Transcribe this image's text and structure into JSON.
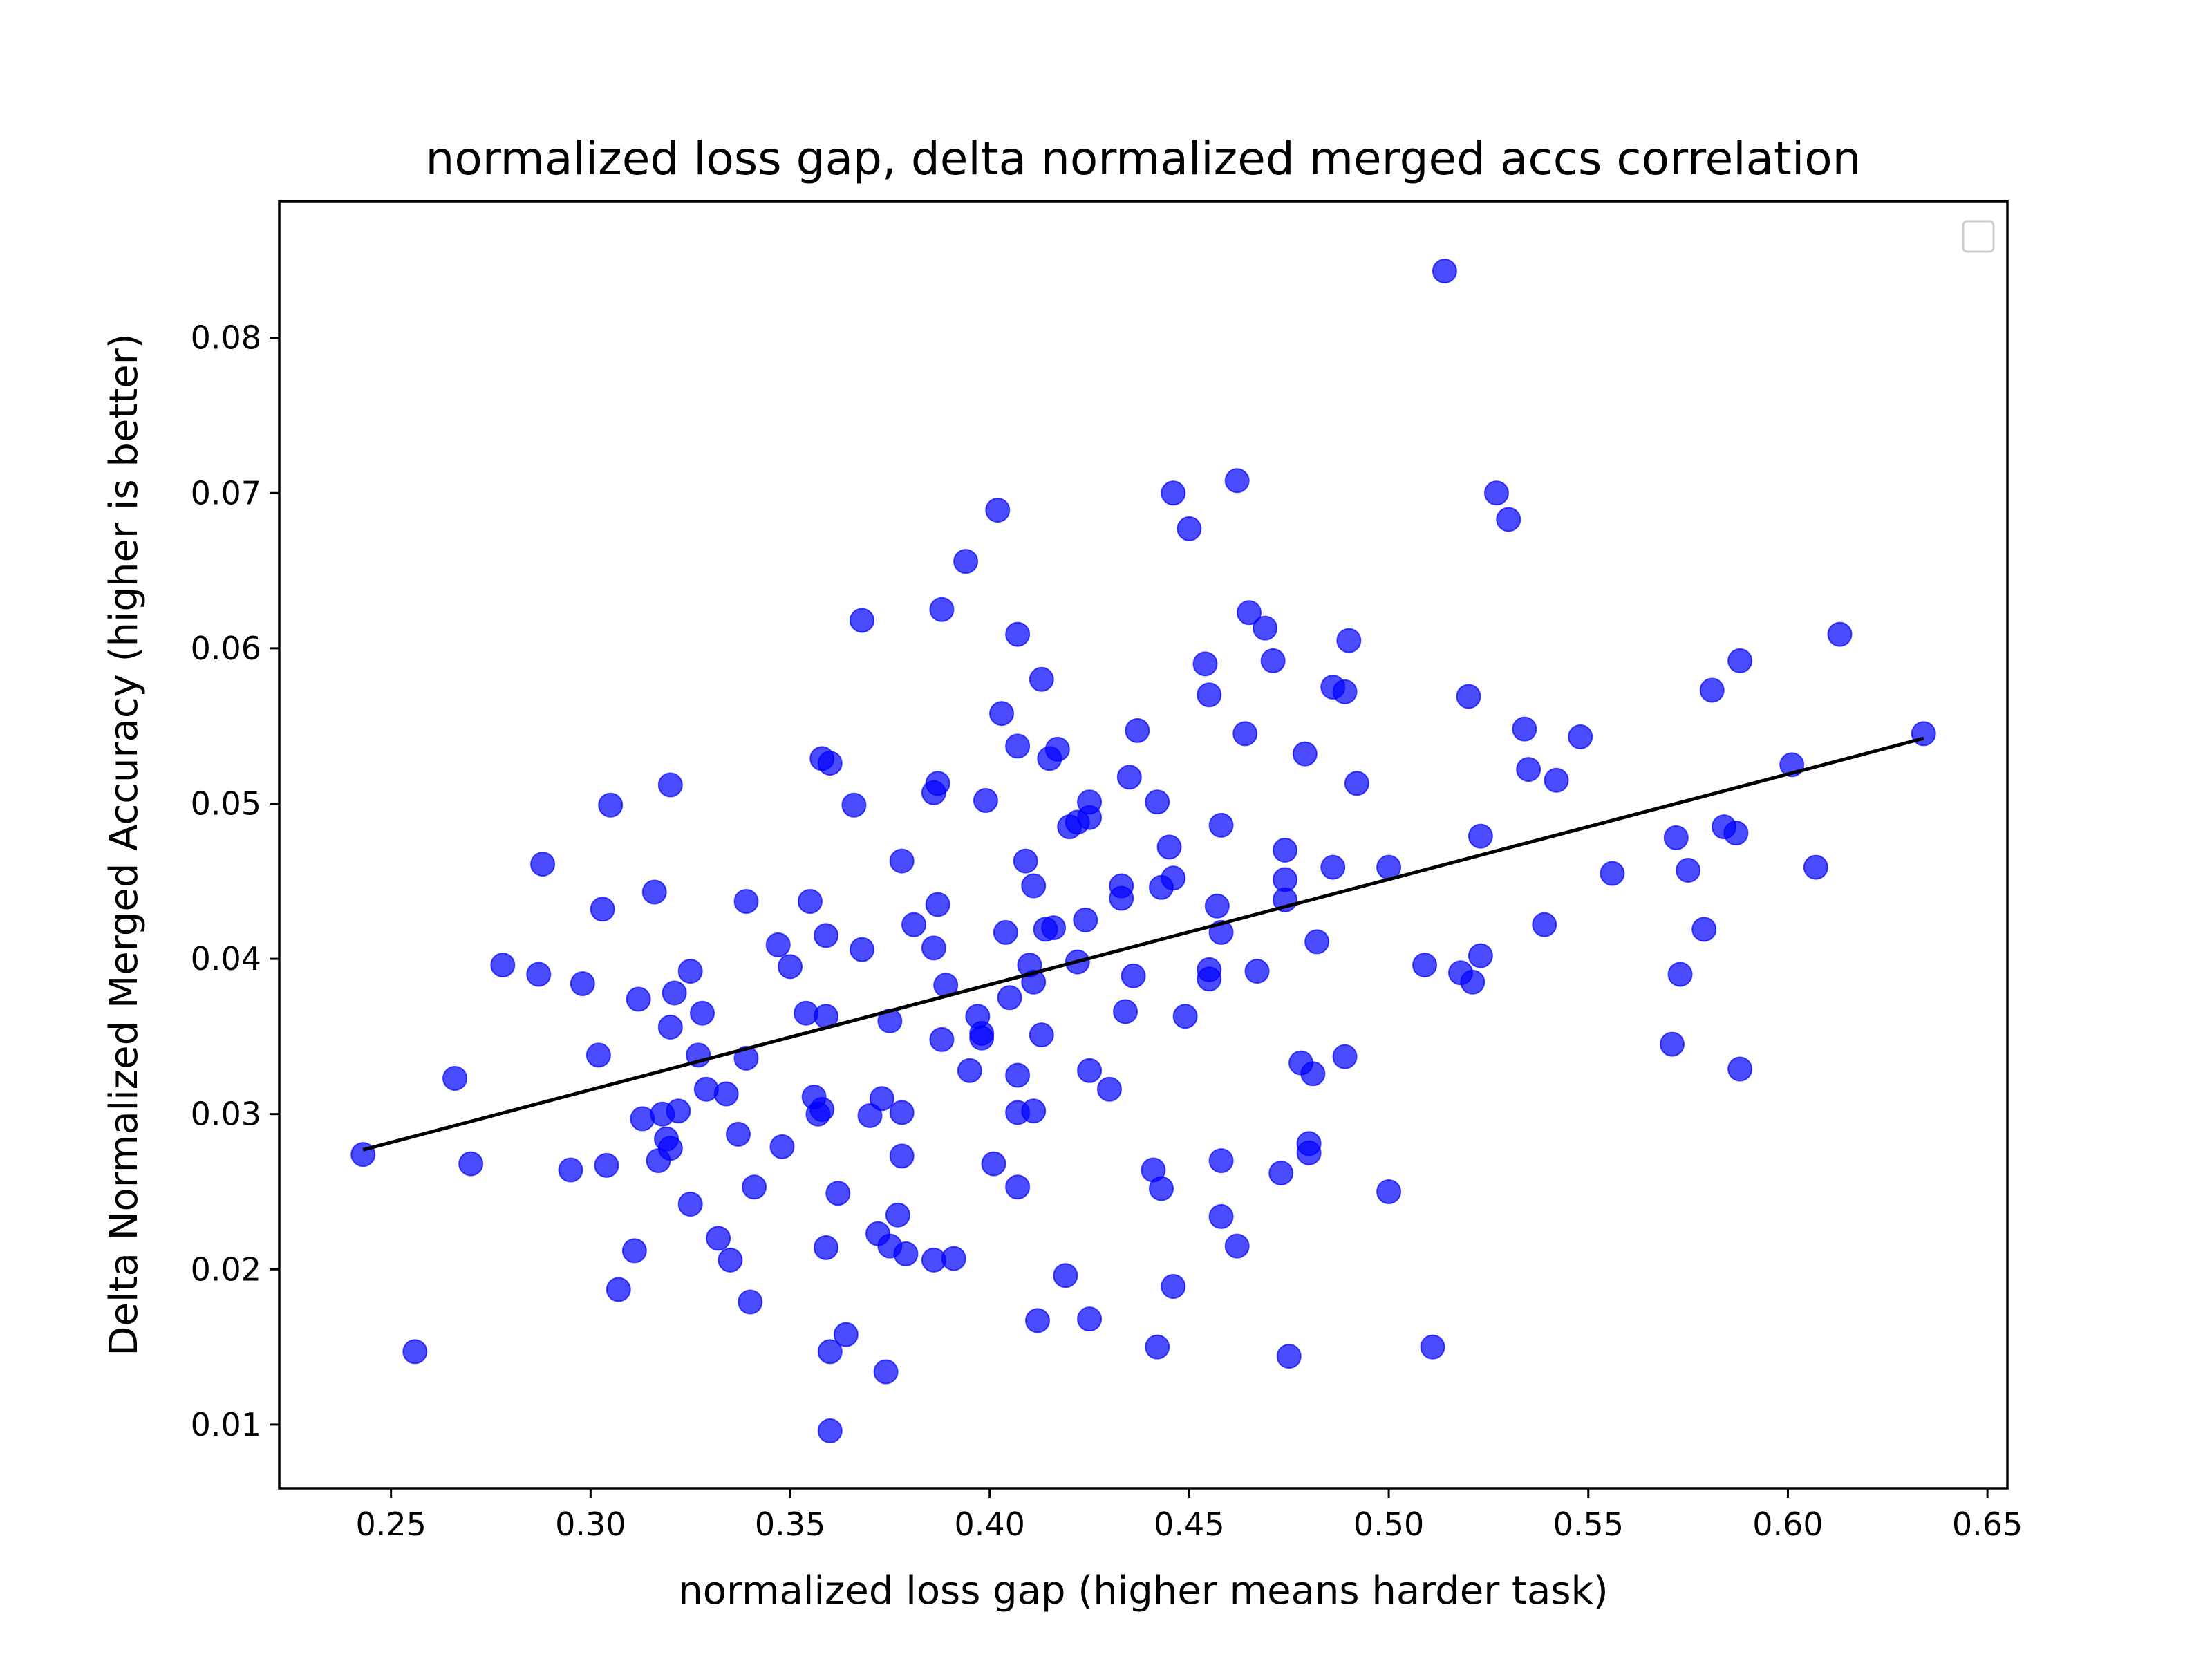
{
  "chart_data": {
    "type": "scatter",
    "title": "normalized loss gap, delta normalized merged accs correlation",
    "xlabel": "normalized loss gap (higher means harder task)",
    "ylabel": "Delta Normalized Merged Accuracy (higher is better)",
    "xlim": [
      0.222,
      0.655
    ],
    "ylim": [
      0.0059,
      0.0888
    ],
    "xticks": [
      "0.25",
      "0.30",
      "0.35",
      "0.40",
      "0.45",
      "0.50",
      "0.55",
      "0.60",
      "0.65"
    ],
    "yticks": [
      "0.01",
      "0.02",
      "0.03",
      "0.04",
      "0.05",
      "0.06",
      "0.07",
      "0.08"
    ],
    "grid": false,
    "legend": "top-right",
    "point_color": "#0000ff",
    "trendline": {
      "color": "#000000",
      "x": [
        0.243,
        0.634
      ],
      "y": [
        0.0277,
        0.0542
      ]
    },
    "points": [
      [
        0.243,
        0.0274
      ],
      [
        0.256,
        0.0147
      ],
      [
        0.266,
        0.0323
      ],
      [
        0.27,
        0.0268
      ],
      [
        0.278,
        0.0396
      ],
      [
        0.287,
        0.039
      ],
      [
        0.288,
        0.0461
      ],
      [
        0.295,
        0.0264
      ],
      [
        0.298,
        0.0384
      ],
      [
        0.302,
        0.0338
      ],
      [
        0.303,
        0.0432
      ],
      [
        0.304,
        0.0267
      ],
      [
        0.305,
        0.0499
      ],
      [
        0.307,
        0.0187
      ],
      [
        0.311,
        0.0212
      ],
      [
        0.312,
        0.0374
      ],
      [
        0.313,
        0.0297
      ],
      [
        0.316,
        0.0443
      ],
      [
        0.317,
        0.027
      ],
      [
        0.318,
        0.03
      ],
      [
        0.319,
        0.0284
      ],
      [
        0.32,
        0.0278
      ],
      [
        0.32,
        0.0512
      ],
      [
        0.32,
        0.0356
      ],
      [
        0.321,
        0.0378
      ],
      [
        0.322,
        0.0302
      ],
      [
        0.325,
        0.0242
      ],
      [
        0.325,
        0.0392
      ],
      [
        0.327,
        0.0338
      ],
      [
        0.328,
        0.0365
      ],
      [
        0.329,
        0.0316
      ],
      [
        0.332,
        0.022
      ],
      [
        0.334,
        0.0313
      ],
      [
        0.335,
        0.0206
      ],
      [
        0.337,
        0.0287
      ],
      [
        0.339,
        0.0336
      ],
      [
        0.339,
        0.0437
      ],
      [
        0.34,
        0.0179
      ],
      [
        0.341,
        0.0253
      ],
      [
        0.347,
        0.0409
      ],
      [
        0.348,
        0.0279
      ],
      [
        0.35,
        0.0395
      ],
      [
        0.354,
        0.0365
      ],
      [
        0.355,
        0.0437
      ],
      [
        0.356,
        0.0311
      ],
      [
        0.357,
        0.03
      ],
      [
        0.358,
        0.0303
      ],
      [
        0.358,
        0.0529
      ],
      [
        0.359,
        0.0415
      ],
      [
        0.359,
        0.0214
      ],
      [
        0.359,
        0.0363
      ],
      [
        0.36,
        0.0526
      ],
      [
        0.36,
        0.0147
      ],
      [
        0.36,
        0.0096
      ],
      [
        0.362,
        0.0249
      ],
      [
        0.364,
        0.0158
      ],
      [
        0.366,
        0.0499
      ],
      [
        0.368,
        0.0406
      ],
      [
        0.368,
        0.0618
      ],
      [
        0.37,
        0.0299
      ],
      [
        0.372,
        0.0223
      ],
      [
        0.373,
        0.031
      ],
      [
        0.374,
        0.0134
      ],
      [
        0.375,
        0.0215
      ],
      [
        0.375,
        0.036
      ],
      [
        0.377,
        0.0235
      ],
      [
        0.378,
        0.0273
      ],
      [
        0.378,
        0.0463
      ],
      [
        0.378,
        0.0301
      ],
      [
        0.379,
        0.021
      ],
      [
        0.381,
        0.0422
      ],
      [
        0.386,
        0.0206
      ],
      [
        0.386,
        0.0507
      ],
      [
        0.387,
        0.0513
      ],
      [
        0.386,
        0.0407
      ],
      [
        0.387,
        0.0435
      ],
      [
        0.388,
        0.0625
      ],
      [
        0.388,
        0.0348
      ],
      [
        0.389,
        0.0383
      ],
      [
        0.391,
        0.0207
      ],
      [
        0.394,
        0.0656
      ],
      [
        0.395,
        0.0328
      ],
      [
        0.397,
        0.0363
      ],
      [
        0.398,
        0.0352
      ],
      [
        0.398,
        0.0349
      ],
      [
        0.399,
        0.0502
      ],
      [
        0.401,
        0.0268
      ],
      [
        0.402,
        0.0689
      ],
      [
        0.403,
        0.0558
      ],
      [
        0.404,
        0.0417
      ],
      [
        0.405,
        0.0375
      ],
      [
        0.407,
        0.0325
      ],
      [
        0.407,
        0.0301
      ],
      [
        0.407,
        0.0609
      ],
      [
        0.407,
        0.0537
      ],
      [
        0.407,
        0.0253
      ],
      [
        0.409,
        0.0463
      ],
      [
        0.41,
        0.0396
      ],
      [
        0.411,
        0.0302
      ],
      [
        0.411,
        0.0447
      ],
      [
        0.411,
        0.0385
      ],
      [
        0.412,
        0.0167
      ],
      [
        0.413,
        0.058
      ],
      [
        0.413,
        0.0351
      ],
      [
        0.414,
        0.0419
      ],
      [
        0.415,
        0.0529
      ],
      [
        0.416,
        0.042
      ],
      [
        0.417,
        0.0535
      ],
      [
        0.419,
        0.0196
      ],
      [
        0.42,
        0.0485
      ],
      [
        0.422,
        0.0488
      ],
      [
        0.422,
        0.0398
      ],
      [
        0.424,
        0.0425
      ],
      [
        0.425,
        0.0328
      ],
      [
        0.425,
        0.0491
      ],
      [
        0.425,
        0.0501
      ],
      [
        0.425,
        0.0168
      ],
      [
        0.43,
        0.0316
      ],
      [
        0.433,
        0.0447
      ],
      [
        0.433,
        0.0439
      ],
      [
        0.434,
        0.0366
      ],
      [
        0.435,
        0.0517
      ],
      [
        0.436,
        0.0389
      ],
      [
        0.437,
        0.0547
      ],
      [
        0.441,
        0.0264
      ],
      [
        0.442,
        0.015
      ],
      [
        0.442,
        0.0501
      ],
      [
        0.443,
        0.0446
      ],
      [
        0.443,
        0.0252
      ],
      [
        0.445,
        0.0472
      ],
      [
        0.446,
        0.0189
      ],
      [
        0.446,
        0.0452
      ],
      [
        0.446,
        0.07
      ],
      [
        0.449,
        0.0363
      ],
      [
        0.45,
        0.0677
      ],
      [
        0.454,
        0.059
      ],
      [
        0.455,
        0.057
      ],
      [
        0.455,
        0.0387
      ],
      [
        0.455,
        0.0393
      ],
      [
        0.457,
        0.0434
      ],
      [
        0.458,
        0.0234
      ],
      [
        0.458,
        0.027
      ],
      [
        0.458,
        0.0486
      ],
      [
        0.458,
        0.0417
      ],
      [
        0.462,
        0.0215
      ],
      [
        0.462,
        0.0708
      ],
      [
        0.464,
        0.0545
      ],
      [
        0.465,
        0.0623
      ],
      [
        0.467,
        0.0392
      ],
      [
        0.469,
        0.0613
      ],
      [
        0.471,
        0.0592
      ],
      [
        0.473,
        0.0262
      ],
      [
        0.474,
        0.047
      ],
      [
        0.474,
        0.0451
      ],
      [
        0.474,
        0.0438
      ],
      [
        0.475,
        0.0144
      ],
      [
        0.478,
        0.0333
      ],
      [
        0.479,
        0.0532
      ],
      [
        0.48,
        0.0275
      ],
      [
        0.48,
        0.0281
      ],
      [
        0.481,
        0.0326
      ],
      [
        0.482,
        0.0411
      ],
      [
        0.486,
        0.0459
      ],
      [
        0.486,
        0.0575
      ],
      [
        0.489,
        0.0572
      ],
      [
        0.489,
        0.0337
      ],
      [
        0.49,
        0.0605
      ],
      [
        0.492,
        0.0513
      ],
      [
        0.5,
        0.025
      ],
      [
        0.5,
        0.0459
      ],
      [
        0.509,
        0.0396
      ],
      [
        0.511,
        0.015
      ],
      [
        0.514,
        0.0843
      ],
      [
        0.518,
        0.0391
      ],
      [
        0.52,
        0.0569
      ],
      [
        0.521,
        0.0385
      ],
      [
        0.523,
        0.0479
      ],
      [
        0.523,
        0.0402
      ],
      [
        0.527,
        0.07
      ],
      [
        0.53,
        0.0683
      ],
      [
        0.534,
        0.0548
      ],
      [
        0.535,
        0.0522
      ],
      [
        0.539,
        0.0422
      ],
      [
        0.542,
        0.0515
      ],
      [
        0.548,
        0.0543
      ],
      [
        0.556,
        0.0455
      ],
      [
        0.571,
        0.0345
      ],
      [
        0.572,
        0.0478
      ],
      [
        0.573,
        0.039
      ],
      [
        0.575,
        0.0457
      ],
      [
        0.579,
        0.0419
      ],
      [
        0.581,
        0.0573
      ],
      [
        0.584,
        0.0485
      ],
      [
        0.587,
        0.0481
      ],
      [
        0.588,
        0.0592
      ],
      [
        0.588,
        0.0329
      ],
      [
        0.601,
        0.0525
      ],
      [
        0.607,
        0.0459
      ],
      [
        0.613,
        0.0609
      ],
      [
        0.634,
        0.0545
      ]
    ]
  }
}
